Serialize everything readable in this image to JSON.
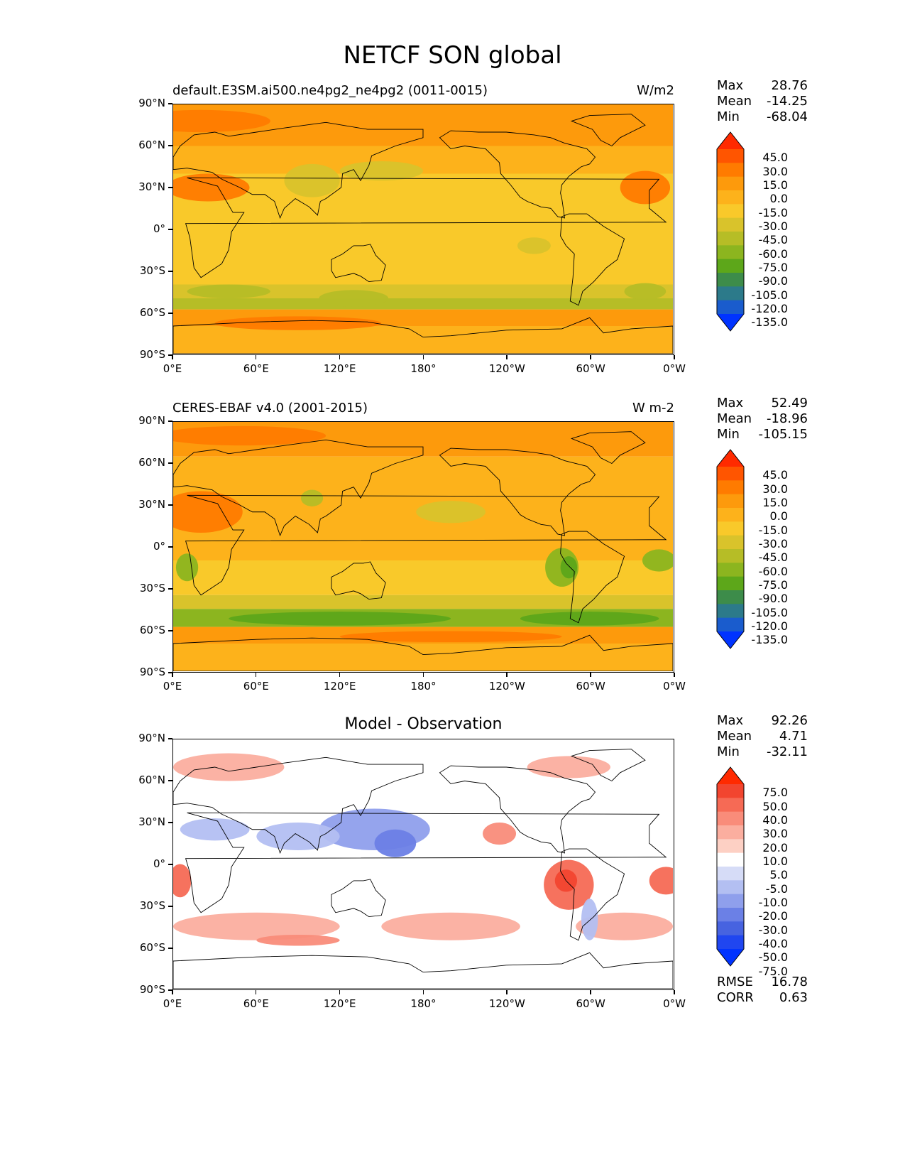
{
  "title": "NETCF SON global",
  "panels": [
    {
      "left_title": "default.E3SM.ai500.ne4pg2_ne4pg2 (0011-0015)",
      "right_title": "W/m2",
      "stats": [
        {
          "label": "Max",
          "value": "28.76"
        },
        {
          "label": "Mean",
          "value": "-14.25"
        },
        {
          "label": "Min",
          "value": "-68.04"
        }
      ],
      "colorbar_labels": [
        "45.0",
        "30.0",
        "15.0",
        "0.0",
        "-15.0",
        "-30.0",
        "-45.0",
        "-60.0",
        "-75.0",
        "-90.0",
        "-105.0",
        "-120.0",
        "-135.0"
      ]
    },
    {
      "left_title": "CERES-EBAF v4.0 (2001-2015)",
      "right_title": "W m-2",
      "stats": [
        {
          "label": "Max",
          "value": "52.49"
        },
        {
          "label": "Mean",
          "value": "-18.96"
        },
        {
          "label": "Min",
          "value": "-105.15"
        }
      ],
      "colorbar_labels": [
        "45.0",
        "30.0",
        "15.0",
        "0.0",
        "-15.0",
        "-30.0",
        "-45.0",
        "-60.0",
        "-75.0",
        "-90.0",
        "-105.0",
        "-120.0",
        "-135.0"
      ]
    },
    {
      "center_title": "Model - Observation",
      "stats": [
        {
          "label": "Max",
          "value": "92.26"
        },
        {
          "label": "Mean",
          "value": "4.71"
        },
        {
          "label": "Min",
          "value": "-32.11"
        }
      ],
      "colorbar_labels": [
        "75.0",
        "50.0",
        "40.0",
        "30.0",
        "20.0",
        "10.0",
        "5.0",
        "-5.0",
        "-10.0",
        "-20.0",
        "-30.0",
        "-40.0",
        "-50.0",
        "-75.0"
      ],
      "metrics": [
        {
          "label": "RMSE",
          "value": "16.78"
        },
        {
          "label": "CORR",
          "value": "0.63"
        }
      ]
    }
  ],
  "lat_ticks": [
    "90°N",
    "60°N",
    "30°N",
    "0°",
    "30°S",
    "60°S",
    "90°S"
  ],
  "lon_ticks": [
    "0°E",
    "60°E",
    "120°E",
    "180°",
    "120°W",
    "60°W",
    "0°W"
  ],
  "colors": {
    "field_cmap": [
      "#ff2a00",
      "#ff5500",
      "#ff7b00",
      "#fd9a0c",
      "#fdb21b",
      "#f9c92a",
      "#d9c32b",
      "#b6bd26",
      "#8cb51f",
      "#5da71a",
      "#3d8c4a",
      "#2c7a8a",
      "#1a5ccd",
      "#0033ff"
    ],
    "diff_cmap": [
      "#ff2a00",
      "#f2452f",
      "#f66a55",
      "#f98c7a",
      "#fbae9f",
      "#fdd0c4",
      "#ffffff",
      "#d6dcf7",
      "#b3bff2",
      "#8f9fec",
      "#6b80e6",
      "#4763e0",
      "#2046f0",
      "#0033ff"
    ]
  }
}
